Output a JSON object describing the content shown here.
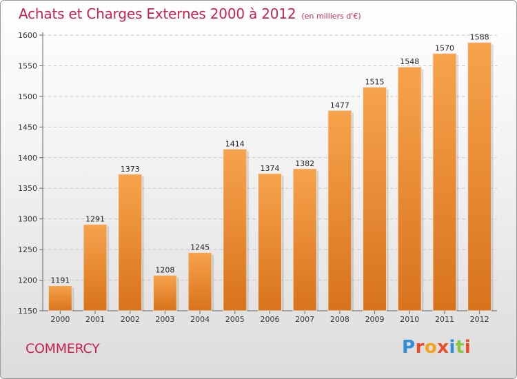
{
  "header": {
    "title": "Achats et Charges Externes 2000 à 2012",
    "subtitle": "(en milliers d'€)"
  },
  "footer": {
    "city": "COMMERCY",
    "brand": "Proxiti"
  },
  "colors": {
    "title": "#c8234f",
    "bar_top": "#f7a34c",
    "bar_bottom": "#d8731c"
  },
  "chart_data": {
    "type": "bar",
    "title": "Achats et Charges Externes 2000 à 2012",
    "subtitle": "(en milliers d'€)",
    "categories": [
      "2000",
      "2001",
      "2002",
      "2003",
      "2004",
      "2005",
      "2006",
      "2007",
      "2008",
      "2009",
      "2010",
      "2011",
      "2012"
    ],
    "values": [
      1191,
      1291,
      1373,
      1208,
      1245,
      1414,
      1374,
      1382,
      1477,
      1515,
      1548,
      1570,
      1588
    ],
    "ylim": [
      1150,
      1600
    ],
    "yticks": [
      1150,
      1200,
      1250,
      1300,
      1350,
      1400,
      1450,
      1500,
      1550,
      1600
    ],
    "grid": true,
    "legend": "none"
  }
}
